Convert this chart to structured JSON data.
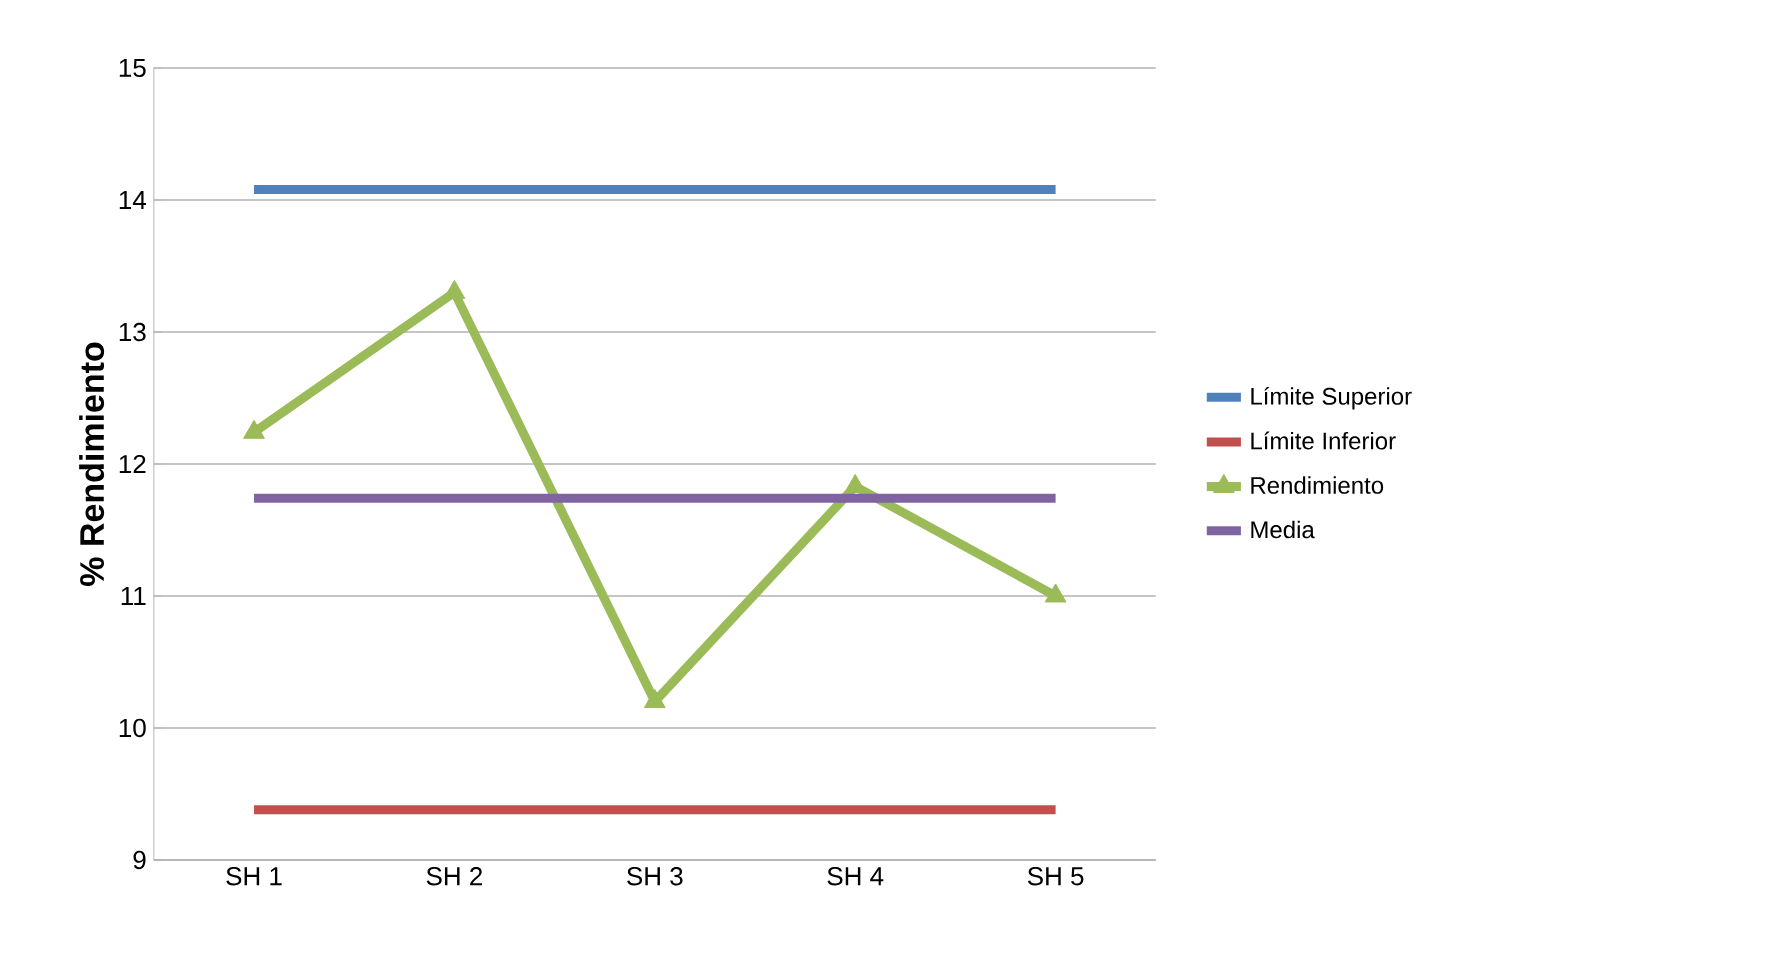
{
  "chart_data": {
    "type": "line",
    "ylabel": "% Rendimiento",
    "categories": [
      "SH 1",
      "SH 2",
      "SH 3",
      "SH 4",
      "SH 5"
    ],
    "series": [
      {
        "name": "Límite Superior",
        "color": "#4f81bd",
        "marker": "none",
        "values": [
          14.08,
          14.08,
          14.08,
          14.08,
          14.08
        ]
      },
      {
        "name": "Límite Inferior",
        "color": "#c0504d",
        "marker": "none",
        "values": [
          9.38,
          9.38,
          9.38,
          9.38,
          9.38
        ]
      },
      {
        "name": "Rendimiento",
        "color": "#9bbb59",
        "marker": "triangle",
        "values": [
          12.24,
          13.3,
          10.2,
          11.83,
          11.0
        ]
      },
      {
        "name": "Media",
        "color": "#8064a2",
        "marker": "none",
        "values": [
          11.74,
          11.74,
          11.74,
          11.74,
          11.74
        ]
      }
    ],
    "ylim": [
      9,
      15
    ],
    "yticks": [
      9,
      10,
      11,
      12,
      13,
      14,
      15
    ],
    "grid": "y",
    "legend": "right"
  }
}
